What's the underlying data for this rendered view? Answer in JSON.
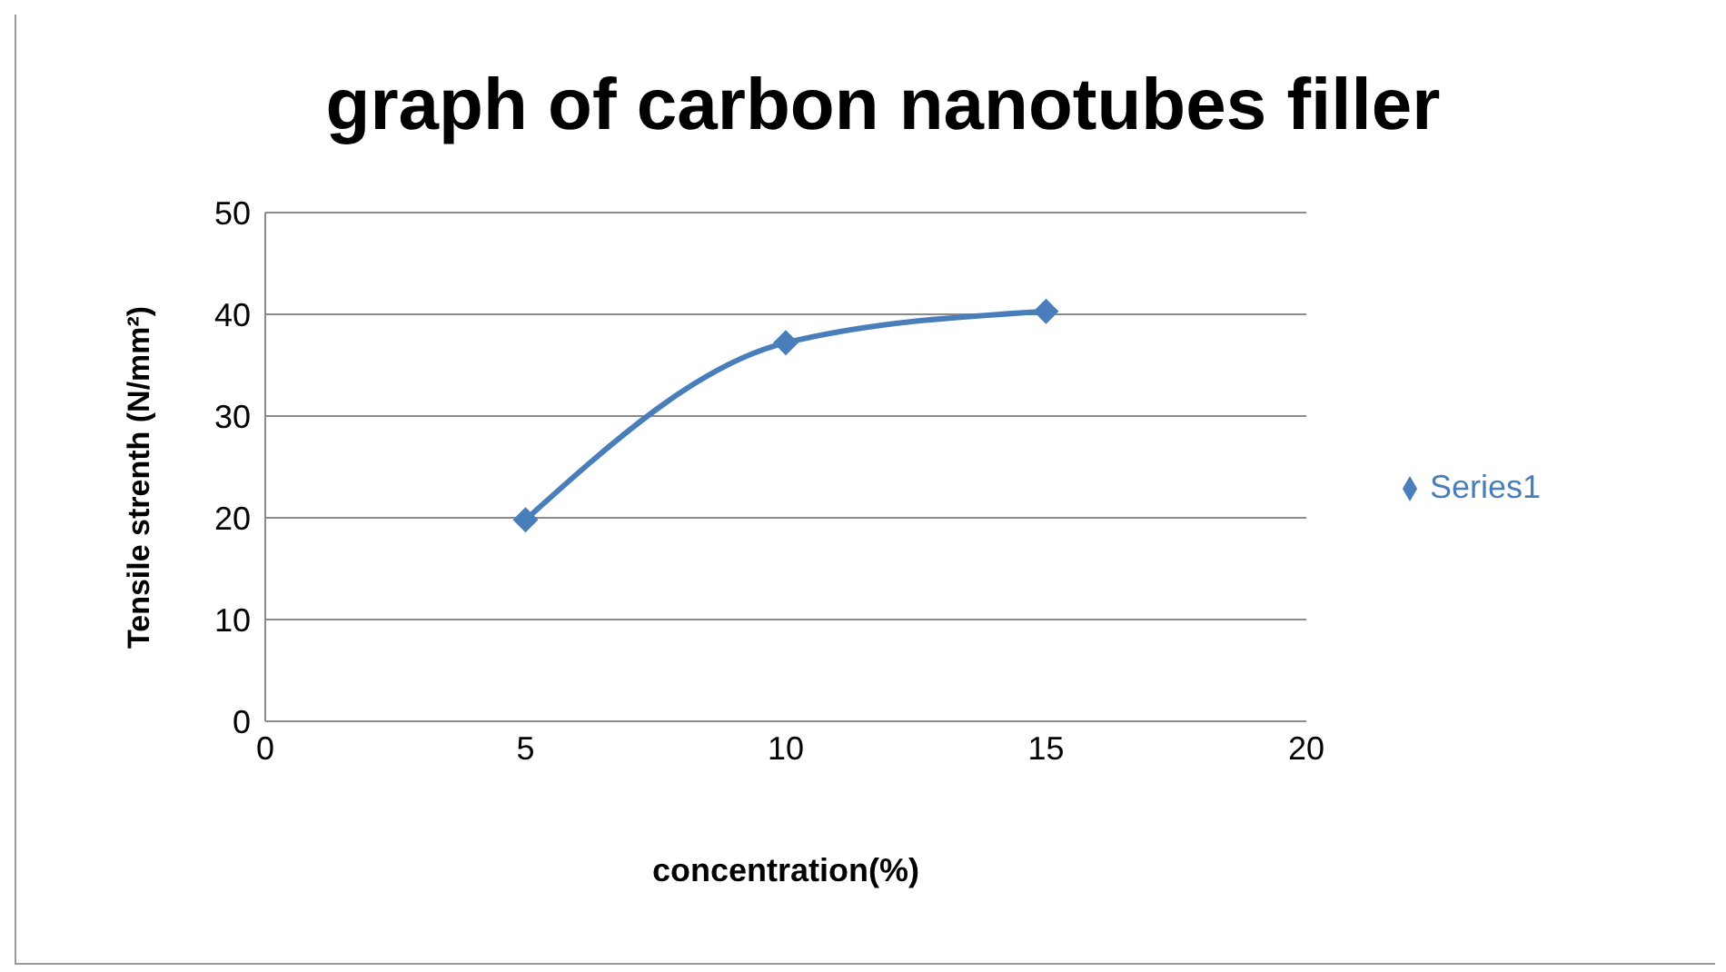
{
  "chart_data": {
    "type": "line",
    "title": "graph of carbon nanotubes filler",
    "xlabel": "concentration(%)",
    "ylabel": "Tensile strenth (N/mm²)",
    "x": [
      5,
      10,
      15
    ],
    "series": [
      {
        "name": "Series1",
        "color": "#4a7ebb",
        "values": [
          19.8,
          37.2,
          40.3
        ]
      }
    ],
    "xlim": [
      0,
      20
    ],
    "xticks": [
      0,
      5,
      10,
      15,
      20
    ],
    "ylim": [
      0,
      50
    ],
    "yticks": [
      0,
      10,
      20,
      30,
      40,
      50
    ],
    "grid": "y",
    "legend": "right",
    "marker": "diamond",
    "line_style": "solid"
  }
}
